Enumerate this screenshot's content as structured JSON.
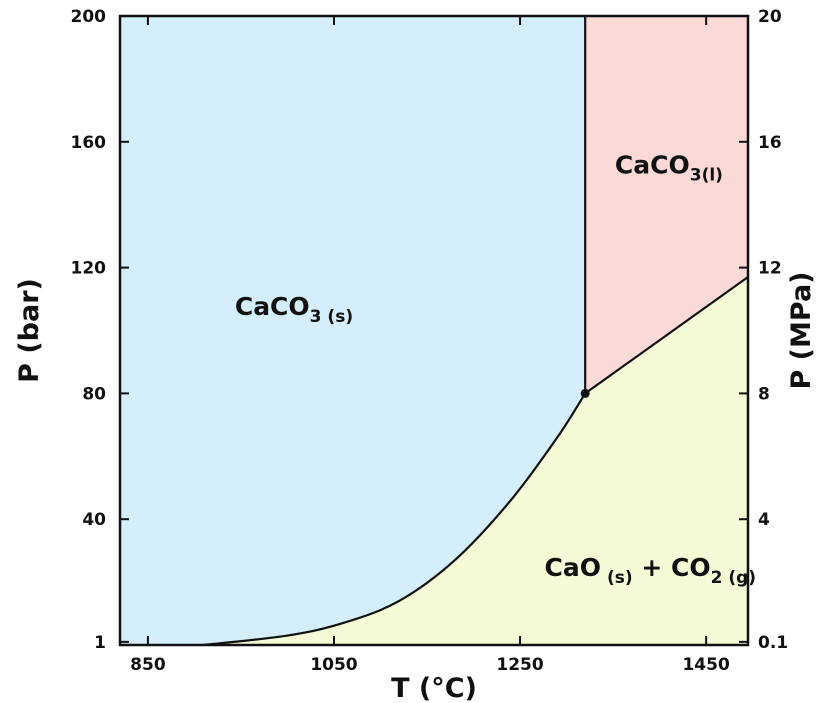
{
  "chart_data": {
    "type": "area",
    "x_axis": {
      "label": "T (°C)",
      "range": [
        820,
        1495
      ],
      "ticks": [
        850,
        1050,
        1250,
        1450
      ]
    },
    "y_axis_left": {
      "label": "P (bar)",
      "range": [
        0,
        200
      ],
      "ticks": [
        {
          "value": 1,
          "label": "1"
        },
        {
          "value": 40,
          "label": "40"
        },
        {
          "value": 80,
          "label": "80"
        },
        {
          "value": 120,
          "label": "120"
        },
        {
          "value": 160,
          "label": "160"
        },
        {
          "value": 200,
          "label": "200"
        }
      ]
    },
    "y_axis_right": {
      "label": "P (MPa)",
      "ticks": [
        {
          "value": 1,
          "label": "0.1"
        },
        {
          "value": 40,
          "label": "4"
        },
        {
          "value": 80,
          "label": "8"
        },
        {
          "value": 120,
          "label": "12"
        },
        {
          "value": 160,
          "label": "16"
        },
        {
          "value": 200,
          "label": "20"
        }
      ]
    },
    "boundaries": {
      "decomposition": {
        "x": [
          910,
          1000,
          1060,
          1120,
          1180,
          1240,
          1290,
          1320
        ],
        "y": [
          0,
          3,
          7,
          14,
          27,
          46,
          66,
          80
        ]
      },
      "melting": {
        "x": [
          1320,
          1320
        ],
        "y": [
          80,
          200
        ]
      },
      "liquid_decomposition": {
        "x": [
          1320,
          1495
        ],
        "y": [
          80,
          117
        ]
      }
    },
    "triple_point": {
      "x": 1320,
      "y": 80
    },
    "regions": [
      {
        "id": "solid",
        "name": "CaCO",
        "sub_num": "3",
        "phase": "(s)",
        "color": "#d4eefb",
        "label_at": {
          "x": 1007,
          "y": 105
        }
      },
      {
        "id": "liquid",
        "name": "CaCO",
        "sub_num": "3",
        "phase": "(l)",
        "color": "#fbd9d6",
        "label_at": {
          "x": 1410,
          "y": 150
        }
      },
      {
        "id": "gas",
        "name": "CaO",
        "phase": "(s)",
        "plus": " + ",
        "name2": "CO",
        "sub_num2": "2",
        "phase2": "(g)",
        "color": "#f4fad6",
        "label_at": {
          "x": 1390,
          "y": 22
        }
      }
    ]
  }
}
